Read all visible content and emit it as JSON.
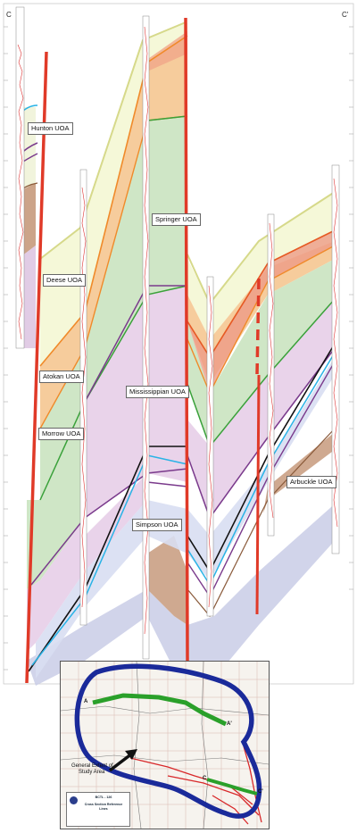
{
  "section": {
    "corner_left": "C",
    "corner_right": "C'",
    "units": {
      "hunton": "Hunton UOA",
      "deese": "Deese UOA",
      "springer": "Springer UOA",
      "atokan": "Atokan UOA",
      "mississippian": "Mississippian UOA",
      "morrow": "Morrow UOA",
      "arbuckle": "Arbuckle UOA",
      "simpson": "Simpson UOA"
    },
    "colors": {
      "fault": "#e03a28",
      "springer_fill": "#cfe6c6",
      "mississippian_fill": "#e9d3ea",
      "atokan_fill": "#f4c89a",
      "deese_fill": "#f5f8d8",
      "lower_fill": "#c9cde6",
      "hunton_fill": "#c79a7c"
    }
  },
  "inset": {
    "label_a": "A",
    "label_a_prime": "A'",
    "label_c": "C",
    "label_c_prime": "C'",
    "study_area_label_1": "General Extent of",
    "study_area_label_2": "Study Area",
    "legend": {
      "line1": "BCTL - 126",
      "line2": "Cross Section Reference",
      "line3": "Lines"
    }
  }
}
